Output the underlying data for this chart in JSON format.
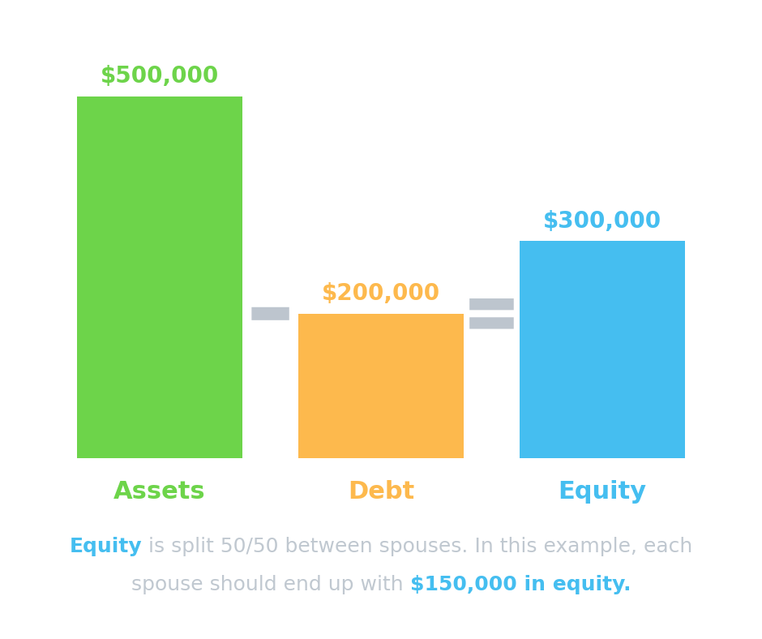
{
  "bars": [
    {
      "label": "Assets",
      "value": 500000,
      "color": "#6dd44a",
      "label_color": "#6dd44a",
      "value_label": "$500,000",
      "value_color": "#6dd44a"
    },
    {
      "label": "Debt",
      "value": 200000,
      "color": "#fdb94d",
      "label_color": "#fdb94d",
      "value_label": "$200,000",
      "value_color": "#fdb94d"
    },
    {
      "label": "Equity",
      "value": 300000,
      "color": "#45bef0",
      "label_color": "#45bef0",
      "value_label": "$300,000",
      "value_color": "#45bef0"
    }
  ],
  "bar_positions": [
    1,
    3,
    5
  ],
  "bar_width": 1.5,
  "ylim_max": 580000,
  "background_color": "#ffffff",
  "operator_color": "#bdc5ce",
  "annotation_line1_parts": [
    {
      "text": "Equity",
      "color": "#45bef0",
      "bold": true
    },
    {
      "text": " is split 50/50 between spouses. In this example, each",
      "color": "#c0c8d0",
      "bold": false
    }
  ],
  "annotation_line2_parts": [
    {
      "text": "spouse should end up with ",
      "color": "#c0c8d0",
      "bold": false
    },
    {
      "text": "$150,000 in equity.",
      "color": "#45bef0",
      "bold": true
    }
  ],
  "annotation_fontsize": 18,
  "label_fontsize": 22,
  "value_fontsize": 20
}
